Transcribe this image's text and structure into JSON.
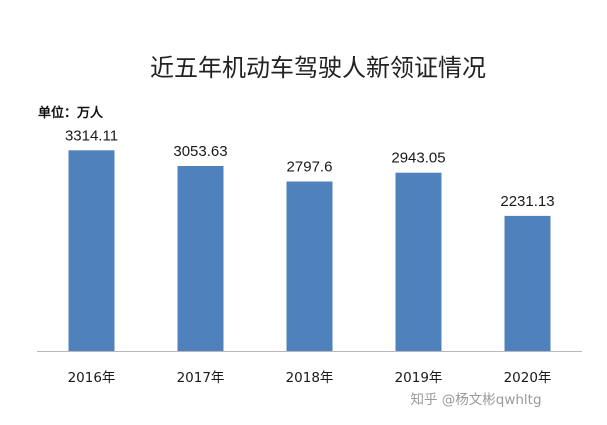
{
  "chart_data": {
    "type": "bar",
    "title": "近五年机动车驾驶人新领证情况",
    "unit_label": "单位：万人",
    "categories": [
      "2016年",
      "2017年",
      "2018年",
      "2019年",
      "2020年"
    ],
    "values": [
      3314.11,
      3053.63,
      2797.6,
      2943.05,
      2231.13
    ],
    "value_labels": [
      "3314.11",
      "3053.63",
      "2797.6",
      "2943.05",
      "2231.13"
    ],
    "ylim": [
      0,
      3500
    ],
    "grid": false,
    "bar_color": "#4f81bd"
  },
  "watermark": "知乎 @杨文彬qwhltg"
}
